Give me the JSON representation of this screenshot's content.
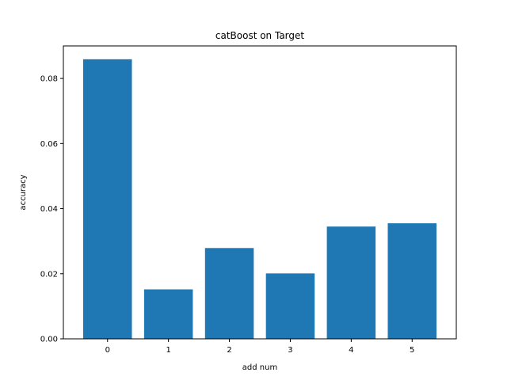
{
  "chart_data": {
    "type": "bar",
    "title": "catBoost on Target",
    "xlabel": "add num",
    "ylabel": "accuracy",
    "categories": [
      "0",
      "1",
      "2",
      "3",
      "4",
      "5"
    ],
    "values": [
      0.0859,
      0.0152,
      0.0279,
      0.0201,
      0.0345,
      0.0355
    ],
    "ylim": [
      0,
      0.09
    ],
    "yticks": [
      0.0,
      0.02,
      0.04,
      0.06,
      0.08
    ],
    "ytick_labels": [
      "0.00",
      "0.02",
      "0.04",
      "0.06",
      "0.08"
    ],
    "bar_color": "#1f77b4",
    "grid": false,
    "legend": "none"
  }
}
